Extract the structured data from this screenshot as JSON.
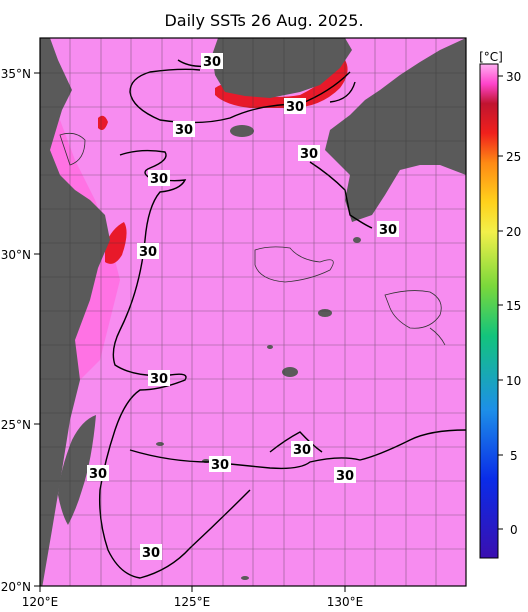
{
  "title": "Daily SSTs 26 Aug. 2025.",
  "map": {
    "lat_labels": [
      "35°N",
      "30°N",
      "25°N",
      "20°N"
    ],
    "lon_labels": [
      "120°E",
      "125°E",
      "130°E"
    ],
    "contour_labels": [
      "30",
      "30",
      "30",
      "30",
      "30",
      "30",
      "30",
      "30",
      "30",
      "30",
      "30",
      "30"
    ],
    "colors": {
      "sea_warm": "#f78cf0",
      "sea_hot": "#ff66dd",
      "land": "#5a5a5a",
      "front": "#e8192a"
    }
  },
  "colorbar": {
    "unit": "[°C]",
    "ticks": [
      "30",
      "25",
      "20",
      "15",
      "10",
      "5",
      "0"
    ]
  }
}
